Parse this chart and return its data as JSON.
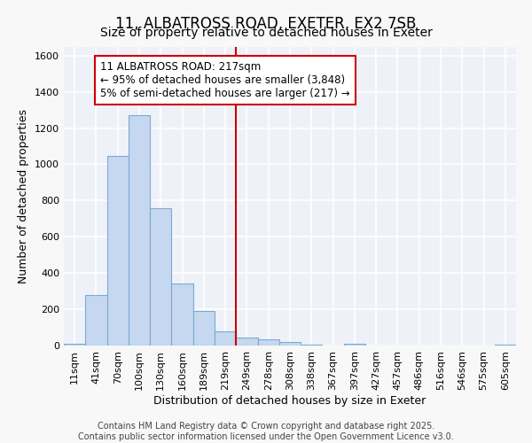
{
  "title_line1": "11, ALBATROSS ROAD, EXETER, EX2 7SB",
  "title_line2": "Size of property relative to detached houses in Exeter",
  "xlabel": "Distribution of detached houses by size in Exeter",
  "ylabel": "Number of detached properties",
  "bar_labels": [
    "11sqm",
    "41sqm",
    "70sqm",
    "100sqm",
    "130sqm",
    "160sqm",
    "189sqm",
    "219sqm",
    "249sqm",
    "278sqm",
    "308sqm",
    "338sqm",
    "367sqm",
    "397sqm",
    "427sqm",
    "457sqm",
    "486sqm",
    "516sqm",
    "546sqm",
    "575sqm",
    "605sqm"
  ],
  "bar_values": [
    10,
    280,
    1045,
    1270,
    760,
    340,
    190,
    80,
    45,
    35,
    20,
    5,
    0,
    12,
    0,
    0,
    0,
    0,
    0,
    0,
    5
  ],
  "bar_color": "#c5d8f0",
  "bar_edgecolor": "#7baad4",
  "vline_index": 7,
  "vline_color": "#cc0000",
  "annotation_line1": "11 ALBATROSS ROAD: 217sqm",
  "annotation_line2": "← 95% of detached houses are smaller (3,848)",
  "annotation_line3": "5% of semi-detached houses are larger (217) →",
  "annotation_box_facecolor": "#ffffff",
  "annotation_box_edgecolor": "#cc0000",
  "ylim": [
    0,
    1650
  ],
  "yticks": [
    0,
    200,
    400,
    600,
    800,
    1000,
    1200,
    1400,
    1600
  ],
  "fig_facecolor": "#f8f8f8",
  "ax_facecolor": "#eef2f8",
  "grid_color": "#ffffff",
  "footer_line1": "Contains HM Land Registry data © Crown copyright and database right 2025.",
  "footer_line2": "Contains public sector information licensed under the Open Government Licence v3.0.",
  "title1_fontsize": 12,
  "title2_fontsize": 10,
  "axis_label_fontsize": 9,
  "tick_fontsize": 8,
  "annotation_fontsize": 8.5,
  "footer_fontsize": 7
}
